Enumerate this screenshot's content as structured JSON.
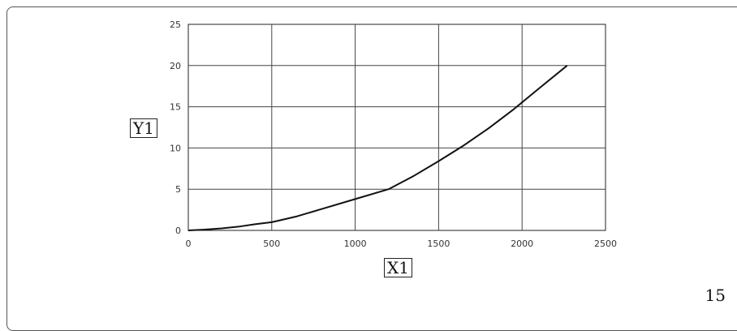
{
  "chart_data": {
    "type": "line",
    "title": "",
    "xlabel": "X1",
    "ylabel": "Y1",
    "xlim": [
      0,
      2500
    ],
    "ylim": [
      0,
      25
    ],
    "x_ticks": [
      0,
      500,
      1000,
      1500,
      2000,
      2500
    ],
    "y_ticks": [
      0,
      5,
      10,
      15,
      20,
      25
    ],
    "grid": true,
    "series": [
      {
        "color": "#111111",
        "x": [
          0,
          100,
          200,
          300,
          400,
          500,
          650,
          800,
          1000,
          1200,
          1350,
          1500,
          1650,
          1800,
          1950,
          2100,
          2270
        ],
        "y": [
          0,
          0.1,
          0.25,
          0.45,
          0.75,
          1.0,
          1.7,
          2.6,
          3.8,
          5.0,
          6.6,
          8.4,
          10.3,
          12.4,
          14.7,
          17.2,
          20.0
        ]
      }
    ]
  },
  "page_number": "15"
}
